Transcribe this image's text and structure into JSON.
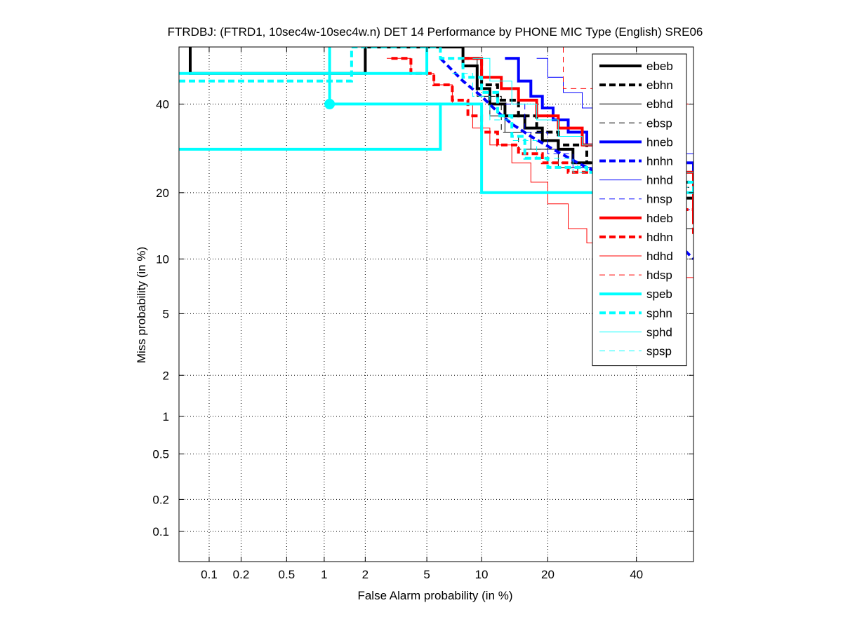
{
  "chart_data": {
    "type": "line",
    "title": "FTRDBJ: (FTRD1, 10sec4w-10sec4w.n) DET 14 Performance by PHONE MIC Type (English) SRE06",
    "xlabel": "False Alarm probability (in %)",
    "ylabel": "Miss probability (in %)",
    "x_scale": "normal-deviate",
    "y_scale": "normal-deviate",
    "xlim": [
      0.05,
      55
    ],
    "ylim": [
      0.05,
      55
    ],
    "x_ticks": [
      0.1,
      0.2,
      0.5,
      1,
      2,
      5,
      10,
      20,
      40
    ],
    "x_tick_labels": [
      "0.1",
      "0.2",
      "0.5",
      "1",
      "2",
      "5",
      "10",
      "20",
      "40"
    ],
    "y_ticks": [
      0.1,
      0.2,
      0.5,
      1,
      2,
      5,
      10,
      20,
      40
    ],
    "y_tick_labels": [
      "0.1",
      "0.2",
      "0.5",
      "1",
      "2",
      "5",
      "10",
      "20",
      "40"
    ],
    "grid": true,
    "legend_position": "top-right",
    "series": [
      {
        "name": "ebeb",
        "color": "#000000",
        "style": "solid",
        "width": 4,
        "x": [
          0.065,
          0.065,
          2.0,
          2.0,
          8.0,
          9.5,
          11.0,
          13.0,
          16.0,
          19.0,
          22.0,
          25.0,
          30.0,
          40.0,
          55.0
        ],
        "y": [
          55,
          48,
          48,
          55,
          50,
          44,
          40,
          37,
          34,
          31,
          29,
          26,
          23,
          19,
          16
        ]
      },
      {
        "name": "ebhn",
        "color": "#000000",
        "style": "dashed",
        "width": 4,
        "x": [
          8.0,
          10.0,
          12.0,
          15.0,
          18.0,
          22.0,
          28.0,
          40.0,
          55.0
        ],
        "y": [
          52,
          45,
          41,
          37,
          33,
          30,
          26,
          22,
          18
        ]
      },
      {
        "name": "ebhd",
        "color": "#000000",
        "style": "solid",
        "width": 1,
        "x": [
          8.5,
          9.5,
          11.0,
          13.0,
          17.0,
          22.0,
          30.0,
          45.0,
          55.0
        ],
        "y": [
          52,
          42,
          37,
          33,
          29,
          25,
          20,
          14,
          9
        ]
      },
      {
        "name": "ebsp",
        "color": "#000000",
        "style": "dashed",
        "width": 1,
        "x": [
          11.0,
          12.5,
          15.0,
          20.0,
          26.0,
          35.0,
          55.0
        ],
        "y": [
          42,
          33,
          29,
          26,
          24,
          21,
          17
        ]
      },
      {
        "name": "hneb",
        "color": "#0000ff",
        "style": "solid",
        "width": 4,
        "x": [
          13.0,
          15.0,
          17.0,
          19.0,
          21.0,
          24.0,
          28.0,
          35.0,
          55.0
        ],
        "y": [
          52,
          46,
          42,
          39,
          36,
          33,
          30,
          26,
          22
        ]
      },
      {
        "name": "hnhn",
        "color": "#0000ff",
        "style": "dashed",
        "width": 4,
        "x": [
          6.0,
          8.0,
          10.0,
          12.0,
          14.0,
          17.0,
          21.0,
          26.0,
          35.0,
          55.0
        ],
        "y": [
          52,
          46,
          42,
          38,
          35,
          32,
          29,
          26,
          22,
          10
        ]
      },
      {
        "name": "hnhd",
        "color": "#0000ff",
        "style": "solid",
        "width": 1,
        "x": [
          18.0,
          20.0,
          23.0,
          27.0,
          33.0,
          45.0,
          55.0
        ],
        "y": [
          52,
          47,
          43,
          39,
          34,
          28,
          22
        ]
      },
      {
        "name": "hnsp",
        "color": "#0000ff",
        "style": "dashed",
        "width": 1,
        "x": [
          13.0,
          16.0,
          20.0,
          25.0,
          33.0,
          45.0,
          55.0
        ],
        "y": [
          40,
          33,
          28,
          25,
          22,
          17,
          12
        ]
      },
      {
        "name": "hdeb",
        "color": "#ff0000",
        "style": "solid",
        "width": 4,
        "x": [
          8.0,
          10.0,
          12.5,
          15.0,
          18.0,
          22.0,
          27.0,
          35.0,
          55.0
        ],
        "y": [
          52,
          47,
          44,
          41,
          37,
          34,
          30,
          24,
          15
        ]
      },
      {
        "name": "hdhn",
        "color": "#ff0000",
        "style": "dashed",
        "width": 4,
        "x": [
          3.0,
          4.0,
          5.5,
          7.0,
          8.5,
          10.0,
          12.0,
          15.0,
          19.0,
          24.0,
          30.0,
          40.0,
          55.0
        ],
        "y": [
          52,
          48,
          45,
          41,
          37,
          33,
          30,
          28,
          26,
          24,
          21,
          17,
          13
        ]
      },
      {
        "name": "hdhd",
        "color": "#ff0000",
        "style": "solid",
        "width": 1,
        "x": [
          2.8,
          4.0,
          5.5,
          7.0,
          9.0,
          11.0,
          14.0,
          17.0,
          20.0,
          24.0,
          28.0,
          35.0,
          45.0,
          55.0
        ],
        "y": [
          52,
          48,
          45,
          40,
          34,
          30,
          26,
          22,
          18,
          14,
          12,
          11,
          8,
          6
        ]
      },
      {
        "name": "hdsp",
        "color": "#ff0000",
        "style": "dashed",
        "width": 1,
        "x": [
          23.0,
          23.0,
          30.0,
          40.0,
          55.0
        ],
        "y": [
          55,
          44,
          40,
          40,
          40
        ]
      },
      {
        "name": "speb",
        "color": "#00ffff",
        "style": "solid",
        "width": 4,
        "x": [
          0.05,
          6.0,
          6.0,
          10.0,
          10.0,
          55.0
        ],
        "y": [
          29,
          29,
          40,
          40,
          20,
          20
        ]
      },
      {
        "name": "sphn",
        "color": "#00ffff",
        "style": "dashed",
        "width": 4,
        "x": [
          0.05,
          1.6,
          1.6,
          6.0,
          8.0,
          10.0,
          12.0,
          14.0,
          16.0,
          20.0,
          28.0,
          40.0,
          55.0
        ],
        "y": [
          46,
          46,
          55,
          52,
          47,
          43,
          37,
          32,
          27,
          25,
          24,
          22,
          20
        ]
      },
      {
        "name": "sphd",
        "color": "#00ffff",
        "style": "solid",
        "width": 1,
        "x": [
          9.0,
          11.0,
          14.0,
          18.0,
          22.0,
          27.0,
          35.0,
          45.0,
          55.0
        ],
        "y": [
          52,
          46,
          40,
          36,
          32,
          30,
          27,
          24,
          20
        ]
      },
      {
        "name": "spsp",
        "color": "#00ffff",
        "style": "dashed",
        "width": 1,
        "x": [
          7.0,
          9.0,
          11.0,
          14.0,
          18.0,
          25.0,
          35.0,
          55.0
        ],
        "y": [
          48,
          42,
          36,
          31,
          27,
          24,
          21,
          16
        ]
      }
    ],
    "step_segments": [
      {
        "series": "speb",
        "x": [
          1.1,
          1.1,
          6.0
        ],
        "y": [
          55,
          40,
          40
        ]
      },
      {
        "series": "speb",
        "x": [
          0.05,
          5.0,
          5.0
        ],
        "y": [
          48,
          48,
          55
        ]
      }
    ],
    "markers": [
      {
        "series": "speb",
        "x": 1.1,
        "y": 40,
        "shape": "circle"
      }
    ]
  }
}
